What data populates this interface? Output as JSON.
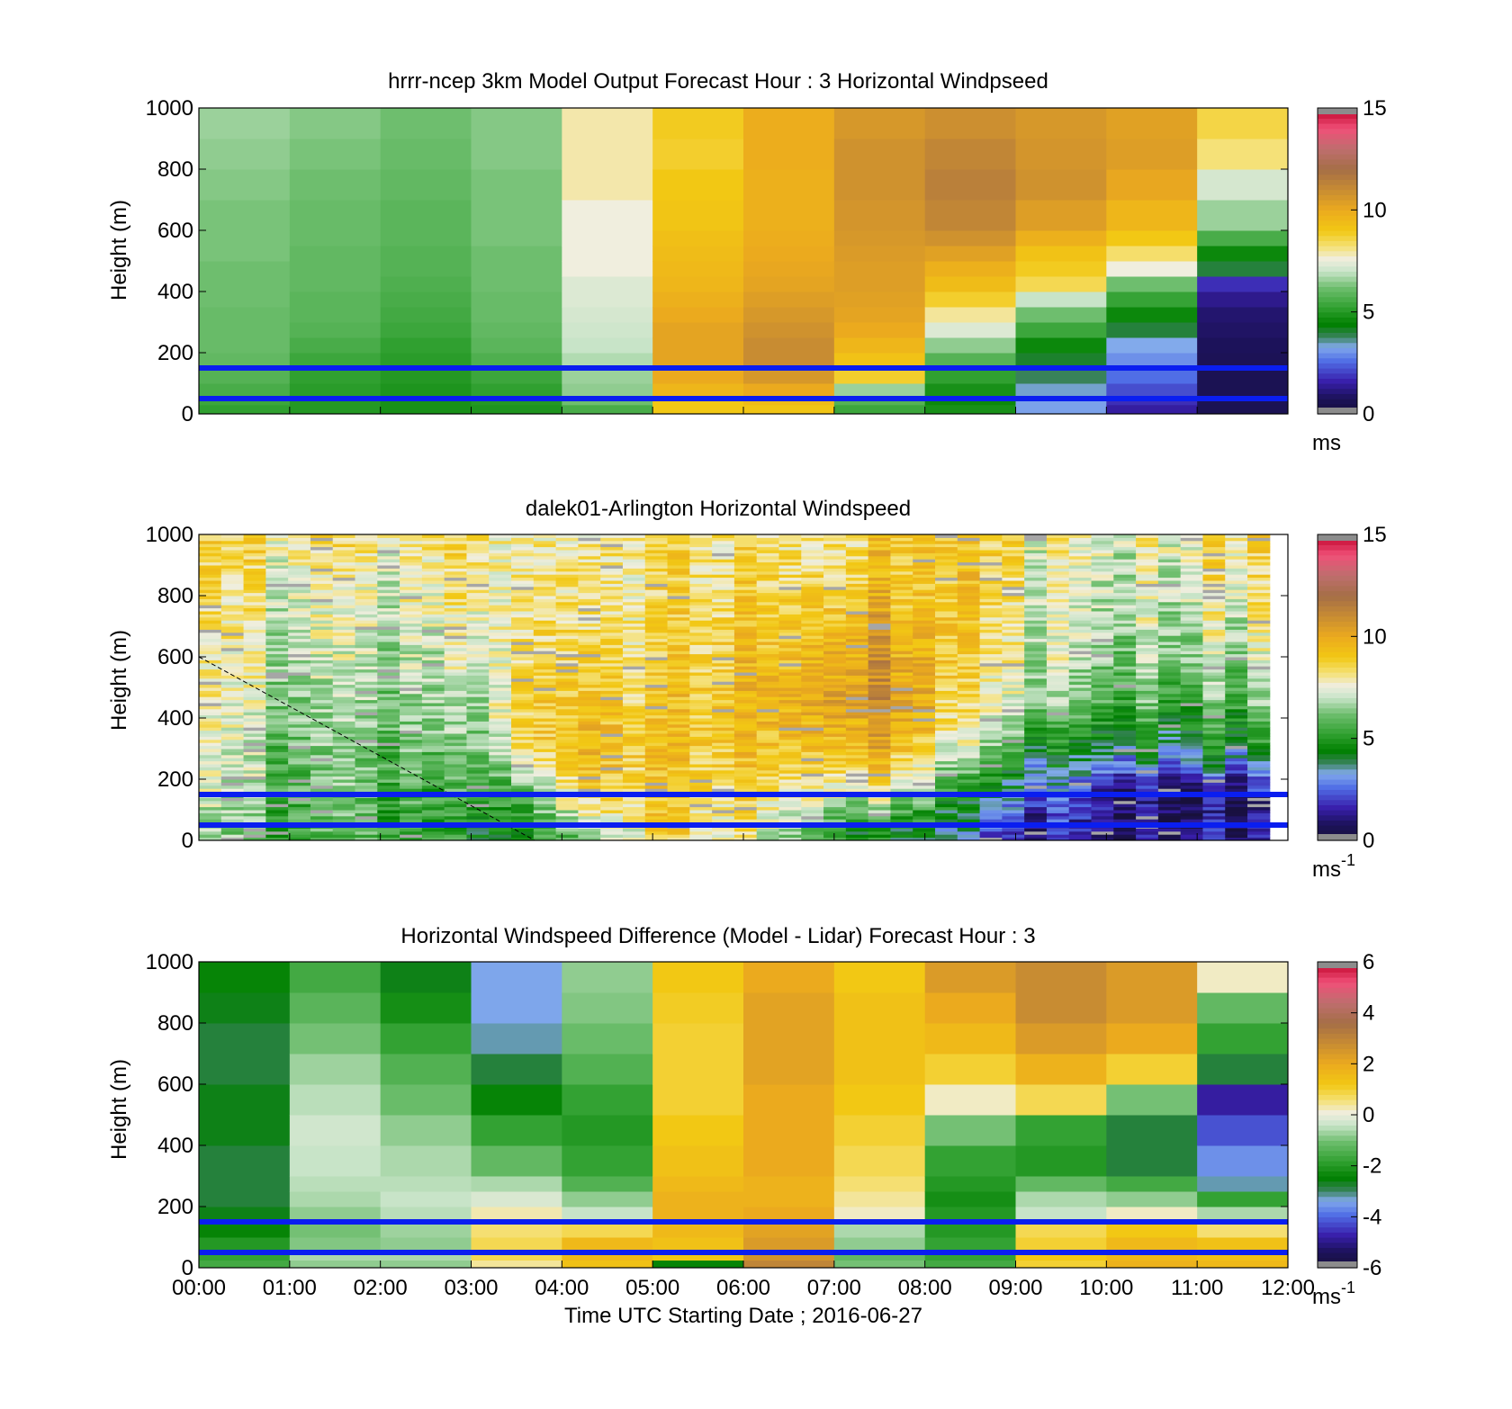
{
  "x_axis": {
    "ticks": [
      "00:00",
      "01:00",
      "02:00",
      "03:00",
      "04:00",
      "05:00",
      "06:00",
      "07:00",
      "08:00",
      "09:00",
      "10:00",
      "11:00",
      "12:00"
    ],
    "label": "Time UTC  Starting Date ; 2016-06-27"
  },
  "reference_lines": {
    "heights_m": [
      150,
      50
    ],
    "color": "#0a1ef0"
  },
  "chart_data": [
    {
      "type": "heatmap",
      "title": "hrrr-ncep 3km Model Output   Forecast Hour : 3 Horizontal Windpseed",
      "ylabel": "Height (m)",
      "ylim": [
        0,
        1000
      ],
      "yticks": [
        "0",
        "200",
        "400",
        "600",
        "800",
        "1000"
      ],
      "colorbar": {
        "min": 0,
        "max": 15,
        "ticks": [
          "0",
          "5",
          "10",
          "15"
        ],
        "unit": "ms",
        "unit_sup": ""
      },
      "x_hours": [
        0,
        1,
        2,
        3,
        4,
        5,
        6,
        7,
        8,
        9,
        10,
        11,
        12
      ],
      "height_m": [
        0,
        30,
        60,
        100,
        150,
        200,
        250,
        300,
        350,
        400,
        450,
        500,
        550,
        600,
        700,
        800,
        900,
        1000
      ],
      "windspeed": [
        [
          5.2,
          5.4,
          5.6,
          5.8,
          6.0,
          6.1,
          6.1,
          6.1,
          6.2,
          6.2,
          6.2,
          6.3,
          6.3,
          6.3,
          6.4,
          6.5,
          6.6
        ],
        [
          5.0,
          5.0,
          5.1,
          5.2,
          5.4,
          5.6,
          5.8,
          5.9,
          5.9,
          6.0,
          6.0,
          6.0,
          6.1,
          6.1,
          6.2,
          6.3,
          6.4
        ],
        [
          4.8,
          4.8,
          4.9,
          5.0,
          5.1,
          5.2,
          5.4,
          5.5,
          5.6,
          5.7,
          5.8,
          5.8,
          5.9,
          5.9,
          6.0,
          6.1,
          6.2
        ],
        [
          4.9,
          5.0,
          5.2,
          5.4,
          5.7,
          5.9,
          6.0,
          6.1,
          6.1,
          6.2,
          6.2,
          6.2,
          6.3,
          6.3,
          6.3,
          6.4,
          6.4
        ],
        [
          5.6,
          6.2,
          6.5,
          6.6,
          6.8,
          7.0,
          7.1,
          7.2,
          7.3,
          7.3,
          7.6,
          7.6,
          7.6,
          7.6,
          7.9,
          7.9,
          7.9
        ],
        [
          9.0,
          9.0,
          9.6,
          10.0,
          10.2,
          10.2,
          10.2,
          10.0,
          9.8,
          9.6,
          9.5,
          9.4,
          9.3,
          9.1,
          9.0,
          8.8,
          8.9
        ],
        [
          9.1,
          9.4,
          10.0,
          10.6,
          11.0,
          11.0,
          10.8,
          10.6,
          10.4,
          10.2,
          10.1,
          10.0,
          9.9,
          9.8,
          9.8,
          9.9,
          9.9
        ],
        [
          5.4,
          5.8,
          6.6,
          8.8,
          9.2,
          9.6,
          10.0,
          10.2,
          10.3,
          10.4,
          10.4,
          10.5,
          10.6,
          10.7,
          10.8,
          10.8,
          10.6
        ],
        [
          4.8,
          4.6,
          4.8,
          5.2,
          5.8,
          6.5,
          7.3,
          8.0,
          8.8,
          9.4,
          9.8,
          10.3,
          10.8,
          11.2,
          11.4,
          11.2,
          10.9
        ],
        [
          3.2,
          3.2,
          3.4,
          3.8,
          4.1,
          4.6,
          5.4,
          6.2,
          7.0,
          8.5,
          8.9,
          9.2,
          9.8,
          10.4,
          10.8,
          10.7,
          10.6
        ],
        [
          1.5,
          1.8,
          2.2,
          2.6,
          3.0,
          3.3,
          4.0,
          4.6,
          5.3,
          6.2,
          7.6,
          8.3,
          9.0,
          9.6,
          10.1,
          10.4,
          10.3
        ],
        [
          0.6,
          0.6,
          0.6,
          0.6,
          0.7,
          0.8,
          0.9,
          1.0,
          1.3,
          1.8,
          4.0,
          4.6,
          5.6,
          6.6,
          7.2,
          8.2,
          8.6
        ]
      ]
    },
    {
      "type": "heatmap",
      "title": "dalek01-Arlington  Horizontal Windspeed",
      "ylabel": "Height (m)",
      "ylim": [
        0,
        1000
      ],
      "yticks": [
        "0",
        "200",
        "400",
        "600",
        "800",
        "1000"
      ],
      "colorbar": {
        "min": 0,
        "max": 15,
        "ticks": [
          "0",
          "5",
          "10",
          "15"
        ],
        "unit": "ms",
        "unit_sup": "-1"
      },
      "x_hours": [
        0,
        11.8
      ],
      "note_line": {
        "x_hours": [
          0,
          3.7
        ],
        "height_m": [
          600,
          0
        ]
      },
      "profiles": [
        {
          "hour": 0,
          "values": [
            6.8,
            7.4,
            7.8,
            8.0,
            8.3,
            8.6,
            8.8
          ]
        },
        {
          "hour": 1,
          "values": [
            5.6,
            5.8,
            6.2,
            6.6,
            7.0,
            7.6,
            8.2
          ]
        },
        {
          "hour": 2,
          "values": [
            5.2,
            5.4,
            5.6,
            6.0,
            6.4,
            7.0,
            7.6
          ]
        },
        {
          "hour": 3,
          "values": [
            4.8,
            5.2,
            6.2,
            6.8,
            7.4,
            8.0,
            8.6
          ]
        },
        {
          "hour": 3.6,
          "values": [
            5.2,
            6.6,
            9.0,
            9.4,
            9.0,
            8.6,
            8.4
          ]
        },
        {
          "hour": 4.3,
          "values": [
            6.4,
            8.6,
            9.4,
            9.0,
            8.4,
            8.0,
            7.9
          ]
        },
        {
          "hour": 5,
          "values": [
            8.4,
            8.8,
            9.0,
            8.8,
            8.4,
            8.2,
            8.4
          ]
        },
        {
          "hour": 6,
          "values": [
            7.8,
            8.4,
            9.0,
            9.4,
            9.2,
            8.6,
            8.2
          ]
        },
        {
          "hour": 6.8,
          "values": [
            6.6,
            8.2,
            9.8,
            10.4,
            10.0,
            9.2,
            8.6
          ]
        },
        {
          "hour": 7.3,
          "values": [
            4.6,
            7.6,
            10.0,
            11.0,
            10.6,
            9.6,
            8.8
          ]
        },
        {
          "hour": 7.9,
          "values": [
            4.0,
            6.6,
            9.0,
            10.2,
            9.6,
            9.0,
            8.8
          ]
        },
        {
          "hour": 8.3,
          "values": [
            3.6,
            4.6,
            7.2,
            8.2,
            8.8,
            9.0,
            9.0
          ]
        },
        {
          "hour": 8.8,
          "values": [
            1.8,
            3.2,
            5.8,
            7.2,
            7.6,
            8.0,
            8.4
          ]
        },
        {
          "hour": 9.3,
          "values": [
            1.2,
            2.0,
            4.4,
            6.0,
            6.8,
            7.2,
            7.4
          ]
        },
        {
          "hour": 10,
          "values": [
            0.8,
            1.4,
            3.8,
            5.6,
            6.4,
            7.0,
            7.4
          ]
        },
        {
          "hour": 11,
          "values": [
            1.2,
            1.0,
            4.2,
            5.8,
            6.8,
            7.6,
            8.2
          ]
        },
        {
          "hour": 11.8,
          "values": [
            1.4,
            1.2,
            4.6,
            6.2,
            7.2,
            8.0,
            8.8
          ]
        }
      ],
      "profile_height_m": [
        25,
        150,
        300,
        450,
        600,
        800,
        1000
      ]
    },
    {
      "type": "heatmap",
      "title": "Horizontal Windspeed Difference (Model - Lidar) Forecast Hour : 3",
      "ylabel": "Height (m)",
      "ylim": [
        0,
        1000
      ],
      "yticks": [
        "0",
        "200",
        "400",
        "600",
        "800",
        "1000"
      ],
      "colorbar": {
        "min": -6,
        "max": 6,
        "ticks": [
          "-6",
          "-4",
          "-2",
          "0",
          "2",
          "4",
          "6"
        ],
        "unit": "ms",
        "unit_sup": "-1"
      },
      "x_hours": [
        0,
        1,
        2,
        3,
        4,
        5,
        6,
        7,
        8,
        9,
        10,
        11,
        12
      ],
      "height_m": [
        0,
        25,
        60,
        100,
        150,
        200,
        250,
        300,
        400,
        500,
        600,
        700,
        800,
        900,
        1000
      ],
      "difference": [
        [
          -1.6,
          -1.8,
          -2.0,
          -2.4,
          -2.6,
          -2.8,
          -2.8,
          -2.8,
          -2.6,
          -2.6,
          -2.8,
          -2.8,
          -2.6,
          -2.4
        ],
        [
          -0.8,
          -0.6,
          -0.9,
          -1.0,
          -0.8,
          -0.6,
          -0.5,
          -0.4,
          -0.3,
          -0.5,
          -0.7,
          -1.0,
          -1.3,
          -1.6
        ],
        [
          -0.8,
          -0.6,
          -0.8,
          -0.7,
          -0.5,
          -0.4,
          -0.5,
          -0.6,
          -0.8,
          -1.1,
          -1.4,
          -1.8,
          -2.2,
          -2.6
        ],
        [
          0.4,
          0.8,
          0.8,
          0.6,
          0.3,
          -0.2,
          -0.6,
          -1.2,
          -1.8,
          -2.4,
          -2.8,
          -3.2,
          -3.4,
          -3.4
        ],
        [
          1.4,
          1.6,
          1.6,
          0.8,
          -0.4,
          -0.8,
          -1.4,
          -1.8,
          -2.0,
          -1.8,
          -1.4,
          -1.1,
          -0.9,
          -0.8
        ],
        [
          -2.4,
          1.2,
          1.4,
          1.6,
          1.8,
          1.8,
          1.6,
          1.4,
          1.2,
          1.0,
          1.0,
          1.0,
          1.1,
          1.2
        ],
        [
          3.0,
          2.6,
          2.4,
          2.2,
          2.0,
          1.8,
          1.8,
          2.0,
          2.0,
          2.0,
          2.2,
          2.2,
          2.2,
          2.0
        ],
        [
          -1.0,
          -1.2,
          -0.8,
          -0.6,
          0.2,
          0.4,
          0.6,
          0.8,
          1.0,
          1.2,
          1.4,
          1.4,
          1.4,
          1.2
        ],
        [
          -1.6,
          -1.8,
          -1.8,
          -2.0,
          -2.0,
          -2.2,
          -2.0,
          -1.8,
          -1.0,
          0.2,
          1.0,
          1.6,
          2.0,
          2.4
        ],
        [
          1.0,
          1.2,
          1.0,
          0.8,
          -0.4,
          -0.6,
          -1.2,
          -2.0,
          -1.8,
          0.8,
          1.8,
          2.4,
          2.8,
          2.8
        ],
        [
          1.8,
          1.6,
          1.6,
          1.2,
          0.2,
          -0.8,
          -1.6,
          -2.8,
          -2.8,
          -1.0,
          1.0,
          2.0,
          2.4,
          2.4
        ],
        [
          1.6,
          1.4,
          1.4,
          0.6,
          -0.6,
          -1.8,
          -3.2,
          -3.6,
          -4.2,
          -4.8,
          -2.8,
          -1.8,
          -1.2,
          0.2
        ]
      ]
    }
  ]
}
